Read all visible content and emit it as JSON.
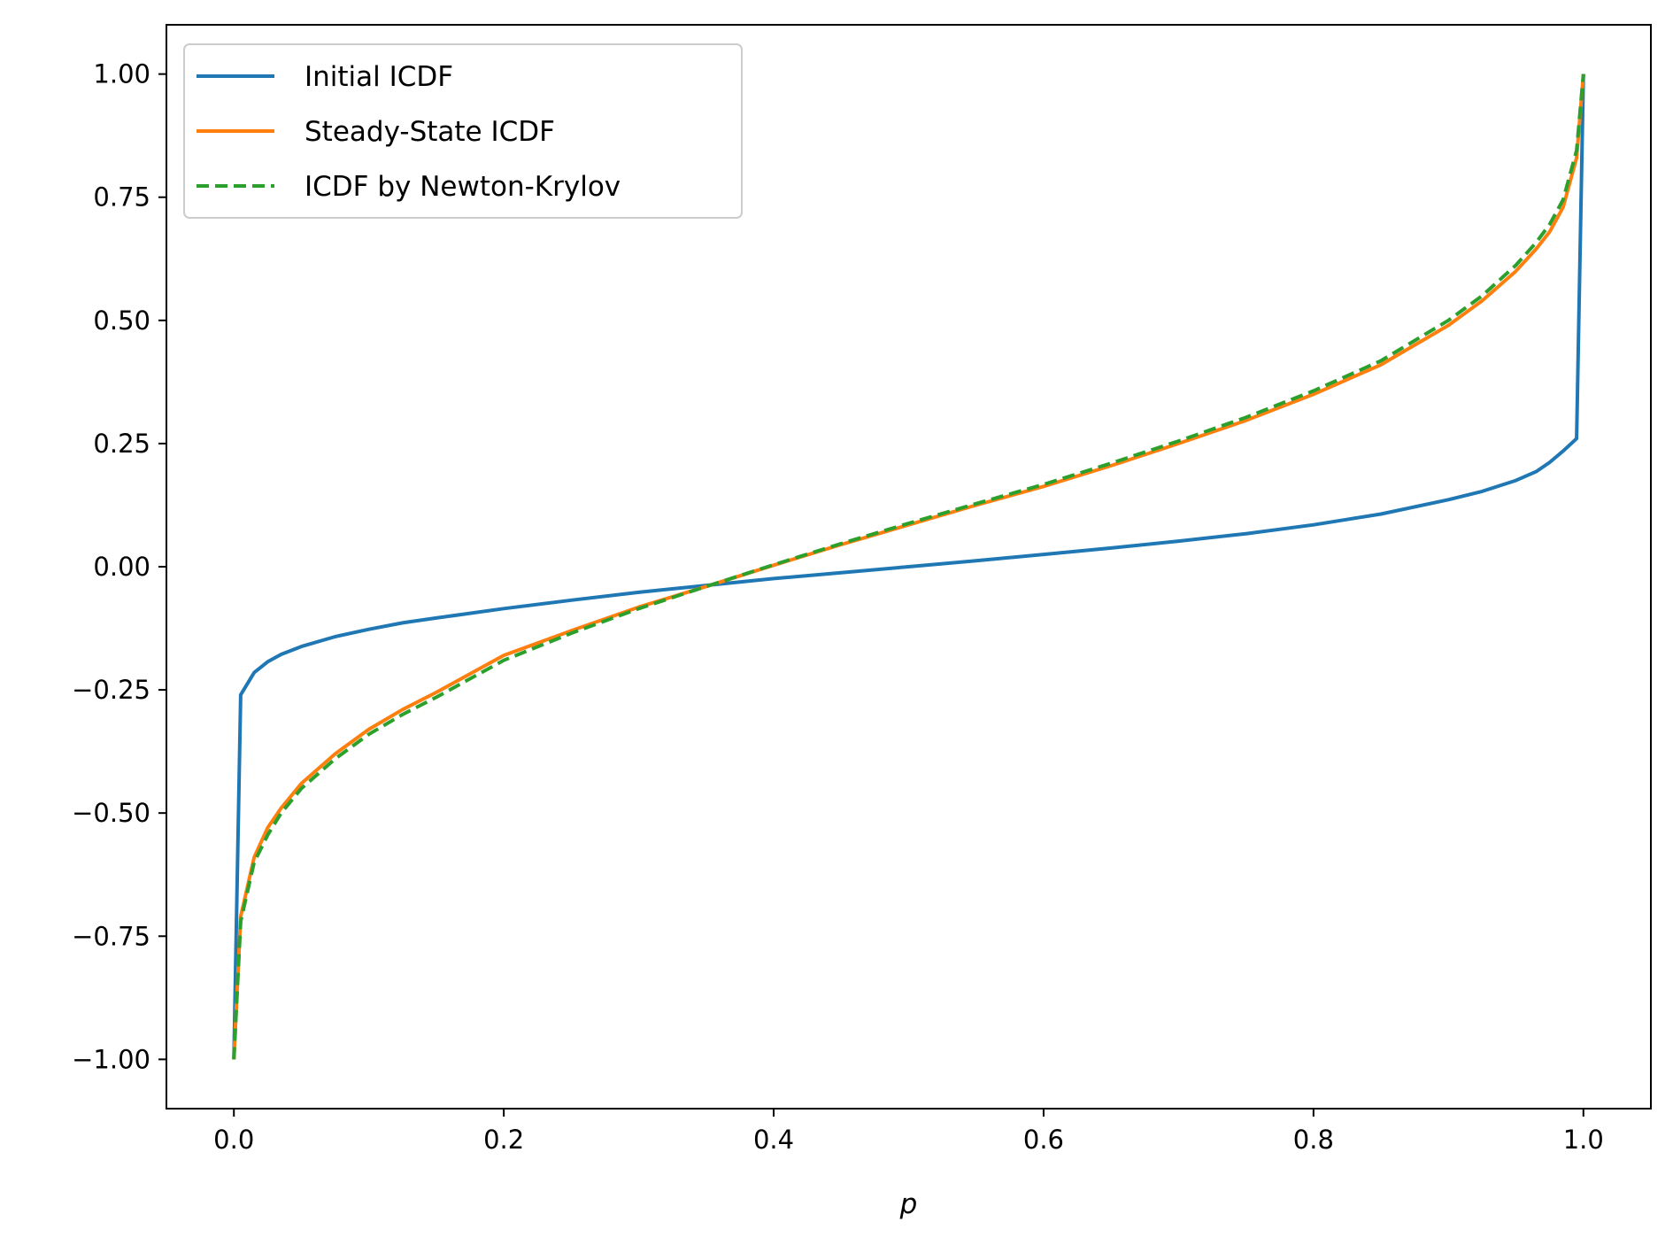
{
  "chart_data": {
    "type": "line",
    "title": "",
    "xlabel": "p",
    "ylabel": "",
    "xlim": [
      -0.05,
      1.05
    ],
    "ylim": [
      -1.1,
      1.1
    ],
    "xticks": [
      0.0,
      0.2,
      0.4,
      0.6,
      0.8,
      1.0
    ],
    "xtick_labels": [
      "0.0",
      "0.2",
      "0.4",
      "0.6",
      "0.8",
      "1.0"
    ],
    "yticks": [
      -1.0,
      -0.75,
      -0.5,
      -0.25,
      0.0,
      0.25,
      0.5,
      0.75,
      1.0
    ],
    "ytick_labels": [
      "−1.00",
      "−0.75",
      "−0.50",
      "−0.25",
      "0.00",
      "0.25",
      "0.50",
      "0.75",
      "1.00"
    ],
    "grid": false,
    "legend_position": "top-left",
    "series": [
      {
        "name": "Initial ICDF",
        "color": "#1f77b4",
        "dash": "solid",
        "x": [
          0.0,
          0.005,
          0.015,
          0.025,
          0.035,
          0.05,
          0.075,
          0.1,
          0.125,
          0.15,
          0.2,
          0.25,
          0.3,
          0.35,
          0.4,
          0.45,
          0.5,
          0.55,
          0.6,
          0.65,
          0.7,
          0.75,
          0.8,
          0.85,
          0.9,
          0.925,
          0.95,
          0.965,
          0.975,
          0.985,
          0.995,
          1.0
        ],
        "y": [
          -1.0,
          -0.26,
          -0.215,
          -0.193,
          -0.178,
          -0.162,
          -0.142,
          -0.127,
          -0.114,
          -0.104,
          -0.085,
          -0.068,
          -0.052,
          -0.038,
          -0.024,
          -0.012,
          0.0,
          0.012,
          0.025,
          0.038,
          0.052,
          0.067,
          0.085,
          0.107,
          0.136,
          0.153,
          0.175,
          0.193,
          0.212,
          0.235,
          0.26,
          1.0
        ]
      },
      {
        "name": "Steady-State ICDF",
        "color": "#ff7f0e",
        "dash": "solid",
        "x": [
          0.0,
          0.005,
          0.015,
          0.025,
          0.035,
          0.05,
          0.075,
          0.1,
          0.125,
          0.15,
          0.2,
          0.25,
          0.3,
          0.35,
          0.4,
          0.45,
          0.5,
          0.55,
          0.6,
          0.65,
          0.7,
          0.75,
          0.8,
          0.85,
          0.9,
          0.925,
          0.95,
          0.965,
          0.975,
          0.985,
          0.995,
          1.0
        ],
        "y": [
          -1.0,
          -0.71,
          -0.59,
          -0.53,
          -0.49,
          -0.44,
          -0.38,
          -0.33,
          -0.29,
          -0.255,
          -0.18,
          -0.13,
          -0.082,
          -0.04,
          0.003,
          0.045,
          0.085,
          0.125,
          0.163,
          0.205,
          0.25,
          0.297,
          0.35,
          0.41,
          0.49,
          0.54,
          0.6,
          0.645,
          0.68,
          0.73,
          0.83,
          1.0
        ]
      },
      {
        "name": "ICDF by Newton-Krylov",
        "color": "#2ca02c",
        "dash": "dashed",
        "x": [
          0.0,
          0.005,
          0.015,
          0.025,
          0.035,
          0.05,
          0.075,
          0.1,
          0.125,
          0.15,
          0.2,
          0.25,
          0.3,
          0.35,
          0.4,
          0.45,
          0.5,
          0.55,
          0.6,
          0.65,
          0.7,
          0.75,
          0.8,
          0.85,
          0.9,
          0.925,
          0.95,
          0.965,
          0.975,
          0.985,
          0.995,
          1.0
        ],
        "y": [
          -1.0,
          -0.72,
          -0.6,
          -0.545,
          -0.5,
          -0.45,
          -0.39,
          -0.34,
          -0.3,
          -0.265,
          -0.19,
          -0.135,
          -0.085,
          -0.04,
          0.004,
          0.047,
          0.088,
          0.128,
          0.167,
          0.21,
          0.255,
          0.303,
          0.357,
          0.418,
          0.5,
          0.55,
          0.612,
          0.658,
          0.695,
          0.745,
          0.845,
          1.0
        ]
      }
    ]
  }
}
